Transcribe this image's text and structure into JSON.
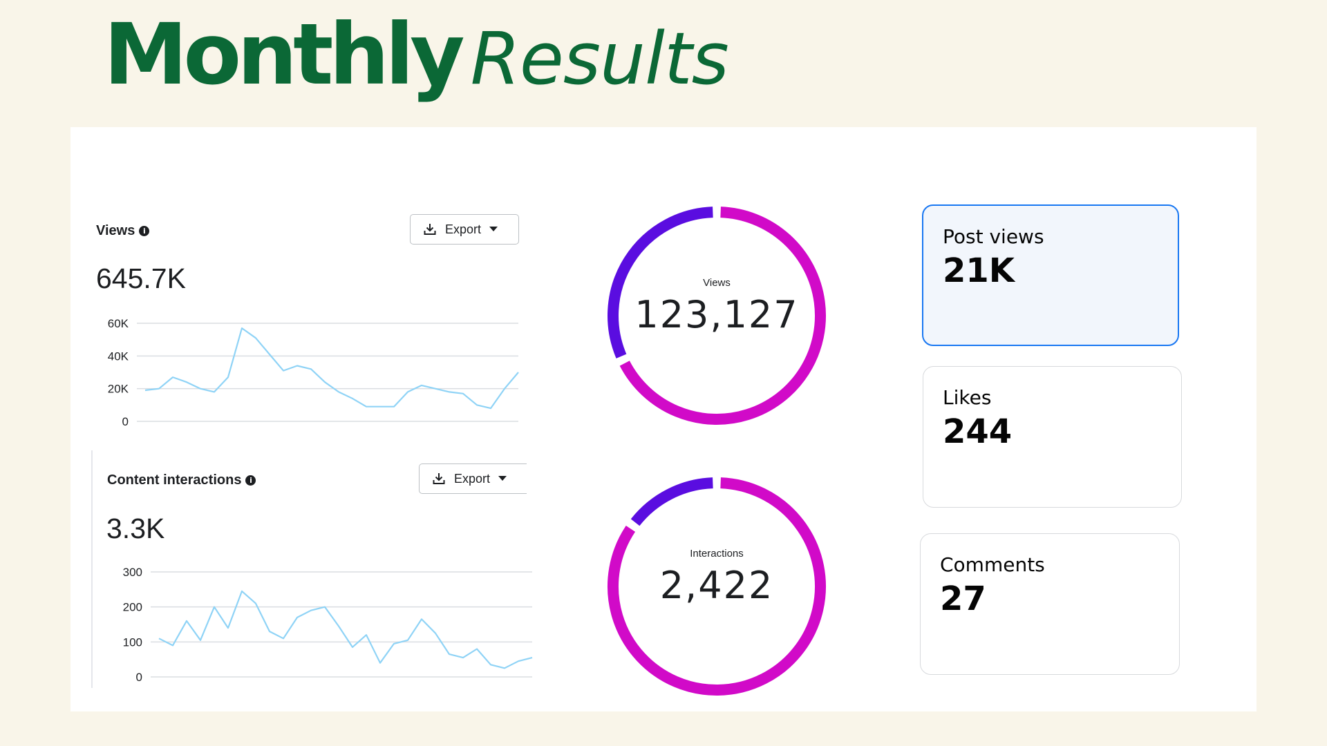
{
  "header": {
    "title_word1": "Monthly",
    "title_word2": "Results"
  },
  "views_panel": {
    "title": "Views",
    "info_icon": "info-icon",
    "total": "645.7K",
    "export_label": "Export",
    "chart_data": {
      "type": "line",
      "title": "",
      "xlabel": "",
      "ylabel": "",
      "ylim": [
        0,
        60000
      ],
      "yticks": [
        "0",
        "20K",
        "40K",
        "60K"
      ],
      "grid": true,
      "color": "#8fd3f6",
      "values": [
        19000,
        20000,
        27000,
        24000,
        20000,
        18000,
        27000,
        57000,
        51000,
        41000,
        31000,
        34000,
        32000,
        24000,
        18000,
        14000,
        9000,
        9000,
        9000,
        18000,
        22000,
        20000,
        18000,
        17000,
        10000,
        8000,
        20000,
        30000
      ]
    }
  },
  "interactions_panel": {
    "title": "Content interactions",
    "info_icon": "info-icon",
    "total": "3.3K",
    "export_label": "Export",
    "chart_data": {
      "type": "line",
      "title": "",
      "xlabel": "",
      "ylabel": "",
      "ylim": [
        0,
        300
      ],
      "yticks": [
        "0",
        "100",
        "200",
        "300"
      ],
      "grid": true,
      "color": "#8fd3f6",
      "values": [
        110,
        90,
        160,
        105,
        200,
        140,
        245,
        210,
        130,
        110,
        170,
        190,
        200,
        145,
        85,
        120,
        40,
        95,
        105,
        165,
        125,
        65,
        55,
        80,
        35,
        25,
        45,
        55
      ]
    }
  },
  "views_donut": {
    "label": "Views",
    "value": "123,127",
    "segments": [
      {
        "fraction": 0.32,
        "color": "#5a0de0"
      },
      {
        "fraction": 0.68,
        "color": "#d10ac8"
      }
    ]
  },
  "interactions_donut": {
    "label": "Interactions",
    "value": "2,422",
    "segments": [
      {
        "fraction": 0.15,
        "color": "#5a0de0"
      },
      {
        "fraction": 0.85,
        "color": "#d10ac8"
      }
    ]
  },
  "stats": {
    "post_views": {
      "label": "Post views",
      "value": "21K"
    },
    "likes": {
      "label": "Likes",
      "value": "244"
    },
    "comments": {
      "label": "Comments",
      "value": "27"
    }
  },
  "colors": {
    "title_green": "#0b6836",
    "background": "#f9f5e9",
    "active_border": "#1877f2"
  }
}
